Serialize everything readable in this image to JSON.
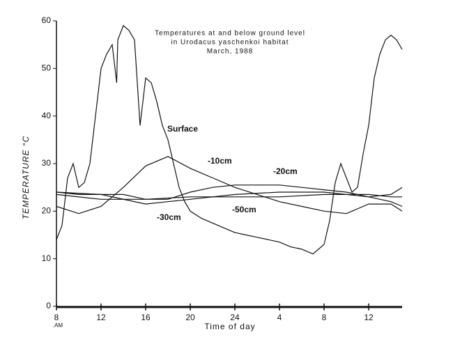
{
  "chart_data": {
    "type": "line",
    "title": "Temperatures at and below ground level",
    "subtitle": [
      "in Urodacus yaschenkoi habitat",
      "March, 1988"
    ],
    "x_label": "Time of day",
    "y_label": "TEMPERATURE  °C",
    "annotation": ".AM",
    "xlim": [
      0,
      31
    ],
    "xticks": [
      {
        "value": 0,
        "label": "8"
      },
      {
        "value": 4,
        "label": "12"
      },
      {
        "value": 8,
        "label": "16"
      },
      {
        "value": 12,
        "label": "20"
      },
      {
        "value": 16,
        "label": "24"
      },
      {
        "value": 20,
        "label": "4"
      },
      {
        "value": 24,
        "label": "8"
      },
      {
        "value": 28,
        "label": "12"
      }
    ],
    "ylim": [
      0,
      60
    ],
    "yticks": [
      0,
      10,
      20,
      30,
      40,
      50,
      60
    ],
    "series": [
      {
        "name": "Surface",
        "color": "#111111",
        "x": [
          0,
          0.5,
          1,
          1.5,
          2,
          2.5,
          3,
          3.5,
          4,
          4.5,
          5,
          5.4,
          5.5,
          6,
          6.5,
          7,
          7.5,
          8,
          8.5,
          9,
          9.5,
          10,
          10.5,
          11,
          11.5,
          12,
          13,
          14,
          15,
          16,
          17,
          18,
          19,
          20,
          21,
          22,
          23,
          23.5,
          24,
          24.5,
          25,
          25.5,
          26,
          26.5,
          27,
          27.5,
          28,
          28.5,
          29,
          29.5,
          30,
          30.5,
          31
        ],
        "values": [
          14,
          17,
          27,
          30,
          25,
          26,
          30,
          40,
          50,
          53,
          55,
          47,
          56,
          59,
          58,
          56,
          38,
          48,
          47,
          43,
          38,
          35,
          30,
          25,
          22,
          20,
          18.5,
          17.5,
          16.5,
          15.5,
          15,
          14.5,
          14,
          13.5,
          12.5,
          12,
          11,
          12,
          13,
          18,
          26,
          30,
          27,
          24,
          25,
          32,
          38,
          48,
          53,
          56,
          57,
          56,
          54
        ]
      },
      {
        "name": "-10cm",
        "color": "#111111",
        "x": [
          0,
          2,
          4,
          6,
          8,
          10,
          12,
          14,
          16,
          18,
          20,
          22,
          24,
          26,
          28,
          30,
          31
        ],
        "values": [
          21,
          19.5,
          21,
          25,
          29.5,
          31.5,
          29,
          27,
          25,
          23.5,
          22,
          21,
          20,
          19.5,
          21.5,
          21.5,
          20
        ]
      },
      {
        "name": "-20cm",
        "color": "#111111",
        "x": [
          0,
          2,
          4,
          6,
          8,
          10,
          12,
          14,
          16,
          18,
          20,
          22,
          24,
          26,
          28,
          30,
          31
        ],
        "values": [
          24,
          23.5,
          23.5,
          23.5,
          22.5,
          22.5,
          24,
          25,
          25.5,
          25.5,
          25.5,
          25,
          24.5,
          24,
          23,
          22,
          21
        ]
      },
      {
        "name": "-30cm",
        "color": "#111111",
        "x": [
          0,
          4,
          8,
          10,
          12,
          16,
          20,
          24,
          26,
          28,
          30,
          31
        ],
        "values": [
          24,
          23.5,
          21.5,
          22,
          22.5,
          23.5,
          24,
          24,
          23.5,
          23,
          23.5,
          25
        ]
      },
      {
        "name": "-50cm",
        "color": "#111111",
        "x": [
          0,
          4,
          8,
          12,
          16,
          20,
          24,
          28,
          30,
          31
        ],
        "values": [
          23.5,
          22.5,
          22.5,
          23,
          23,
          23,
          23.5,
          23.5,
          23,
          23
        ]
      }
    ]
  }
}
